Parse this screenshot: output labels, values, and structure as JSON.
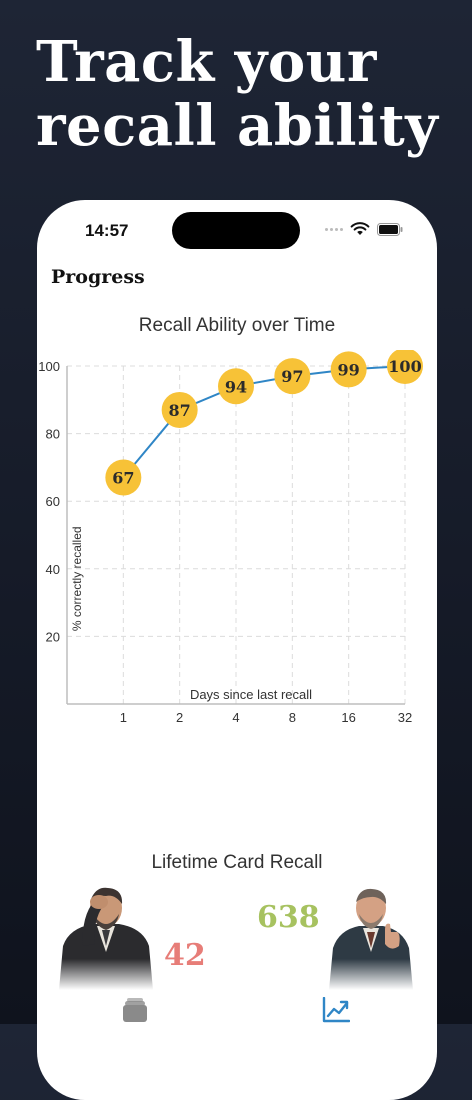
{
  "headline": [
    "Track your",
    "recall ability"
  ],
  "status_bar": {
    "time": "14:57"
  },
  "screen_title": "Progress",
  "chart_data": {
    "type": "line",
    "title": "Recall Ability over Time",
    "xlabel": "Days since last recall",
    "ylabel": "% correctly recalled",
    "categories": [
      "1",
      "2",
      "4",
      "8",
      "16",
      "32"
    ],
    "values": [
      67,
      87,
      94,
      97,
      99,
      100
    ],
    "yticks": [
      20,
      40,
      60,
      80,
      100
    ],
    "ylim": [
      0,
      100
    ],
    "grid": true,
    "line_color": "#2f86c6",
    "marker_color": "#f7c237"
  },
  "lifetime": {
    "title": "Lifetime Card Recall",
    "forgotten_count": "42",
    "recalled_count": "638",
    "forgotten_color": "#e77d78",
    "recalled_color": "#a7c260"
  },
  "tabbar": {
    "items": [
      {
        "icon": "card-stack-icon",
        "active": false
      },
      {
        "icon": "chart-icon",
        "active": true
      }
    ],
    "active_color": "#2f86c6",
    "inactive_color": "#8a8a8a"
  }
}
